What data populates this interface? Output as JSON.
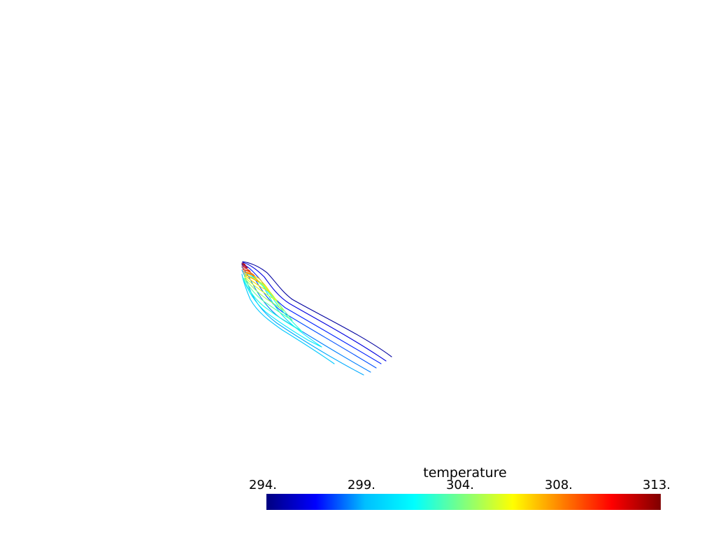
{
  "scalar_bar": {
    "title": "temperature",
    "ticks": [
      "294.",
      "299.",
      "304.",
      "308.",
      "313."
    ],
    "range": [
      294,
      313
    ],
    "colormap": "jet",
    "colors": [
      "#00007f",
      "#0000ff",
      "#00bfff",
      "#00ffff",
      "#7fff7f",
      "#ffff00",
      "#ff7f00",
      "#ff0000",
      "#7f0000"
    ]
  },
  "chart_data": {
    "type": "contour",
    "scalar": "temperature",
    "range": [
      294,
      313
    ],
    "ticks": [
      294,
      299,
      304,
      308,
      313
    ],
    "colormap": "jet",
    "background": "#ffffff"
  }
}
